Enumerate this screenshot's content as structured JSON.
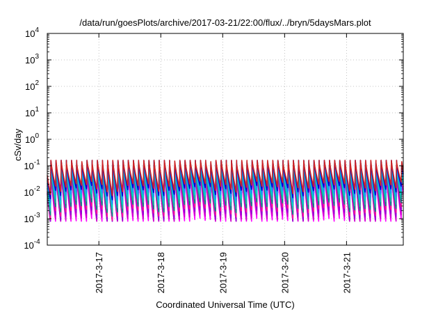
{
  "chart_data": {
    "type": "line",
    "title": "/data/run/goesPlots/archive/2017-03-21/22:00/flux/../bryn/5daysMars.plot",
    "xlabel": "Coordinated Universal Time (UTC)",
    "ylabel": "cSv/day",
    "yscale": "log",
    "ylim": [
      0.0001,
      10000
    ],
    "xlim": [
      "2017-03-16 04:00",
      "2017-03-21 22:00"
    ],
    "y_ticks": [
      {
        "base": "10",
        "exp": "-4"
      },
      {
        "base": "10",
        "exp": "-3"
      },
      {
        "base": "10",
        "exp": "-2"
      },
      {
        "base": "10",
        "exp": "-1"
      },
      {
        "base": "10",
        "exp": "0"
      },
      {
        "base": "10",
        "exp": "1"
      },
      {
        "base": "10",
        "exp": "2"
      },
      {
        "base": "10",
        "exp": "3"
      },
      {
        "base": "10",
        "exp": "4"
      }
    ],
    "x_ticks": [
      "2017-3-17",
      "2017-3-18",
      "2017-3-19",
      "2017-3-20",
      "2017-3-21"
    ],
    "grid": true,
    "orbit_period_hours": 2,
    "series_colors": [
      "#ff00ff",
      "#cc00cc",
      "#9400d3",
      "#ff1493",
      "#008b8b",
      "#20b2aa",
      "#00ced1",
      "#1e90ff",
      "#0000cd",
      "#cd2626"
    ],
    "series_envelope": {
      "peak_min": 0.05,
      "peak_max": 0.16,
      "trough_min": 0.0008,
      "trough_max": 0.02
    }
  }
}
